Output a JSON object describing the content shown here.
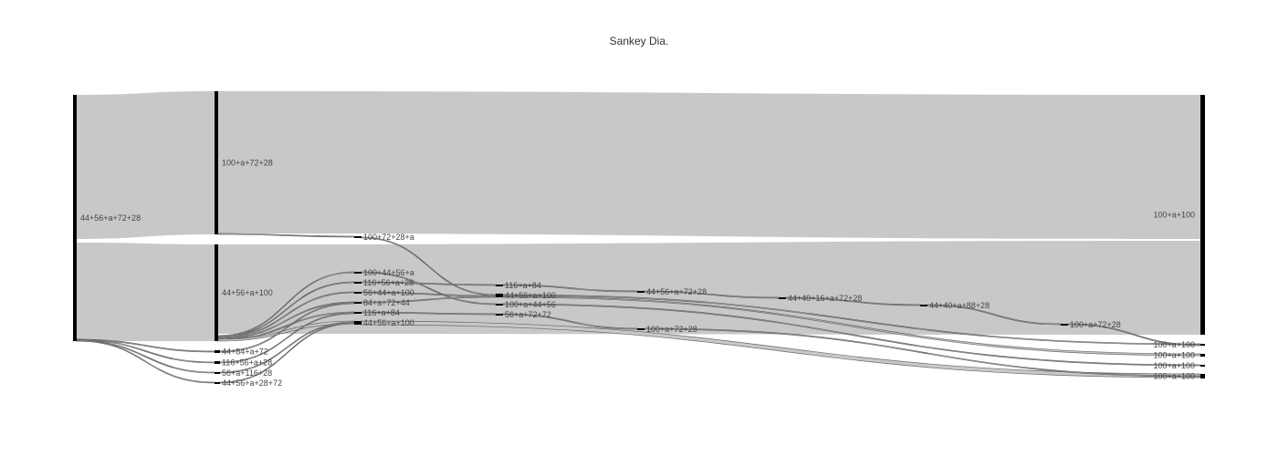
{
  "chart_data": {
    "type": "sankey",
    "title": "Sankey Dia.",
    "colors": {
      "link": "#c8c8c8",
      "link_stroke": "#555555",
      "node": "#000000",
      "background": "#ffffff"
    },
    "nodes": [
      {
        "id": "n0",
        "label": "44+56+a+72+28"
      },
      {
        "id": "n1",
        "label": "100+a+72+28"
      },
      {
        "id": "n2",
        "label": "44+56+a+100"
      },
      {
        "id": "n3",
        "label": "44+84+a+72"
      },
      {
        "id": "n4",
        "label": "116+56+a+28"
      },
      {
        "id": "n5",
        "label": "56+a+116+28"
      },
      {
        "id": "n6",
        "label": "44+56+a+28+72"
      },
      {
        "id": "n7",
        "label": "100+72+28+a"
      },
      {
        "id": "n8",
        "label": "100+44+56+a"
      },
      {
        "id": "n9",
        "label": "116+56+a+28"
      },
      {
        "id": "n10",
        "label": "56+44+a+100"
      },
      {
        "id": "n11",
        "label": "84+a+72+44"
      },
      {
        "id": "n12",
        "label": "116+a+84"
      },
      {
        "id": "n13",
        "label": "44+56+a+100"
      },
      {
        "id": "n14",
        "label": "116+a+84"
      },
      {
        "id": "n15",
        "label": "44+56+a+100"
      },
      {
        "id": "n16",
        "label": "100+a+44+56"
      },
      {
        "id": "n17",
        "label": "56+a+72+72"
      },
      {
        "id": "n18",
        "label": "44+56+a+72+28"
      },
      {
        "id": "n19",
        "label": "100+a+72+28"
      },
      {
        "id": "n20",
        "label": "44+40+16+a+72+28"
      },
      {
        "id": "n21",
        "label": "44+40+a+88+28"
      },
      {
        "id": "n22",
        "label": "100+a+72+28"
      },
      {
        "id": "n23",
        "label": "100+a+100"
      },
      {
        "id": "n24",
        "label": "100+a+100"
      },
      {
        "id": "n25",
        "label": "100+a+100"
      },
      {
        "id": "n26",
        "label": "100+a+100"
      },
      {
        "id": "n27",
        "label": "100+a+100"
      }
    ],
    "links": [
      {
        "source": "n0",
        "target": "n1",
        "value": 100
      },
      {
        "source": "n0",
        "target": "n2",
        "value": 70
      },
      {
        "source": "n0",
        "target": "n3",
        "value": 1
      },
      {
        "source": "n0",
        "target": "n4",
        "value": 1
      },
      {
        "source": "n0",
        "target": "n5",
        "value": 1
      },
      {
        "source": "n0",
        "target": "n6",
        "value": 1
      },
      {
        "source": "n1",
        "target": "n23",
        "value": 100
      },
      {
        "source": "n1",
        "target": "n7",
        "value": 1
      },
      {
        "source": "n2",
        "target": "n23",
        "value": 60
      },
      {
        "source": "n2",
        "target": "n8",
        "value": 1
      },
      {
        "source": "n2",
        "target": "n9",
        "value": 1
      },
      {
        "source": "n2",
        "target": "n10",
        "value": 1
      },
      {
        "source": "n2",
        "target": "n11",
        "value": 1
      },
      {
        "source": "n2",
        "target": "n12",
        "value": 1
      },
      {
        "source": "n2",
        "target": "n13",
        "value": 2
      },
      {
        "source": "n3",
        "target": "n11",
        "value": 1
      },
      {
        "source": "n4",
        "target": "n12",
        "value": 1
      },
      {
        "source": "n5",
        "target": "n13",
        "value": 1
      },
      {
        "source": "n6",
        "target": "n13",
        "value": 1
      },
      {
        "source": "n7",
        "target": "n15",
        "value": 1
      },
      {
        "source": "n8",
        "target": "n16",
        "value": 1
      },
      {
        "source": "n9",
        "target": "n14",
        "value": 1
      },
      {
        "source": "n10",
        "target": "n15",
        "value": 1
      },
      {
        "source": "n11",
        "target": "n15",
        "value": 1
      },
      {
        "source": "n12",
        "target": "n17",
        "value": 1
      },
      {
        "source": "n13",
        "target": "n27",
        "value": 2
      },
      {
        "source": "n14",
        "target": "n18",
        "value": 1
      },
      {
        "source": "n15",
        "target": "n24",
        "value": 1
      },
      {
        "source": "n15",
        "target": "n25",
        "value": 1
      },
      {
        "source": "n16",
        "target": "n26",
        "value": 1
      },
      {
        "source": "n17",
        "target": "n19",
        "value": 1
      },
      {
        "source": "n18",
        "target": "n20",
        "value": 1
      },
      {
        "source": "n19",
        "target": "n27",
        "value": 1
      },
      {
        "source": "n20",
        "target": "n21",
        "value": 1
      },
      {
        "source": "n21",
        "target": "n22",
        "value": 1
      },
      {
        "source": "n22",
        "target": "n24",
        "value": 1
      }
    ]
  }
}
